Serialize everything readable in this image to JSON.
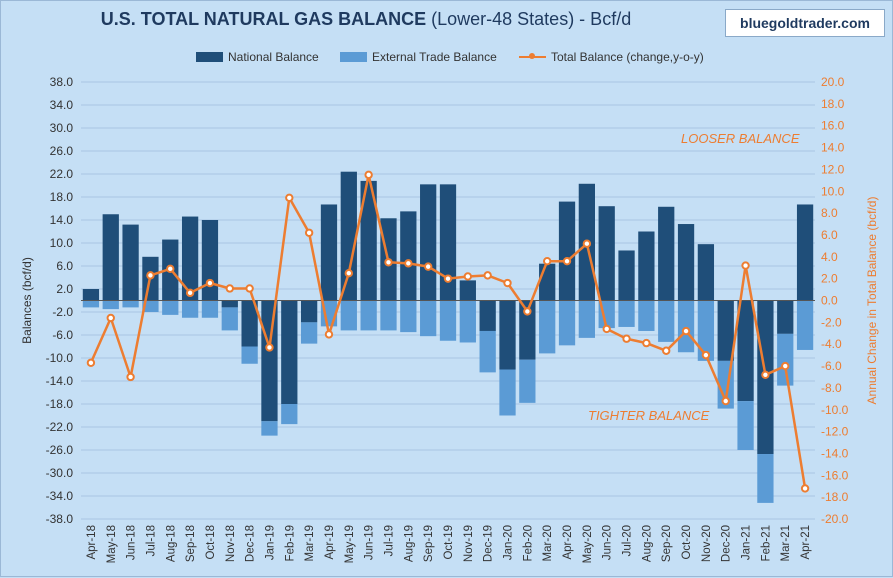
{
  "title": {
    "bold": "U.S. TOTAL NATURAL GAS BALANCE",
    "rest": " (Lower-48 States) - Bcf/d"
  },
  "brand": "bluegoldtrader.com",
  "legend": {
    "national": "National Balance",
    "external": "External Trade Balance",
    "total": "Total Balance (change,y-o-y)"
  },
  "annotations": {
    "looser": "LOOSER BALANCE",
    "tighter": "TIGHTER BALANCE"
  },
  "colors": {
    "national": "#1f4e79",
    "external": "#5b9bd5",
    "total": "#ed7d31",
    "grid": "#a9c6e3"
  },
  "chart_data": {
    "type": "bar",
    "categories": [
      "Apr-18",
      "May-18",
      "Jun-18",
      "Jul-18",
      "Aug-18",
      "Sep-18",
      "Oct-18",
      "Nov-18",
      "Dec-18",
      "Jan-19",
      "Feb-19",
      "Mar-19",
      "Apr-19",
      "May-19",
      "Jun-19",
      "Jul-19",
      "Aug-19",
      "Sep-19",
      "Oct-19",
      "Nov-19",
      "Dec-19",
      "Jan-20",
      "Feb-20",
      "Mar-20",
      "Apr-20",
      "May-20",
      "Jun-20",
      "Jul-20",
      "Aug-20",
      "Sep-20",
      "Oct-20",
      "Nov-20",
      "Dec-20",
      "Jan-21",
      "Feb-21",
      "Mar-21",
      "Apr-21"
    ],
    "series": [
      {
        "name": "National Balance",
        "axis": "left",
        "stack": true,
        "values": [
          2,
          15,
          13.2,
          7.6,
          10.6,
          14.6,
          14,
          -1.2,
          -8,
          -21,
          -18,
          -3.8,
          16.7,
          22.4,
          20.8,
          14.3,
          15.5,
          20.2,
          20.2,
          3.5,
          -5.3,
          -12,
          -10.3,
          6.4,
          17.2,
          20.3,
          16.4,
          8.7,
          12,
          16.3,
          13.3,
          9.8,
          -10.5,
          -17.5,
          -26.7,
          -5.8,
          16.7
        ]
      },
      {
        "name": "External Trade Balance",
        "axis": "left",
        "stack": true,
        "values": [
          -1.2,
          -1.5,
          -1.2,
          -2,
          -2.5,
          -3,
          -3,
          -4,
          -3,
          -2.5,
          -3.5,
          -3.7,
          -4.5,
          -5.2,
          -5.2,
          -5.2,
          -5.5,
          -6.2,
          -7,
          -7.3,
          -7.2,
          -8,
          -7.5,
          -9.2,
          -7.8,
          -6.5,
          -4.8,
          -4.6,
          -5.3,
          -7.2,
          -9,
          -10.5,
          -8.3,
          -8.5,
          -8.5,
          -9,
          -8.6
        ]
      },
      {
        "name": "Total Balance (change,y-o-y)",
        "axis": "right",
        "type": "line",
        "values": [
          -5.7,
          -1.6,
          -7.0,
          2.3,
          2.9,
          0.7,
          1.6,
          1.1,
          1.1,
          -4.3,
          9.4,
          6.2,
          -3.1,
          2.5,
          11.5,
          3.5,
          3.4,
          3.1,
          2.0,
          2.2,
          2.3,
          1.6,
          -1.0,
          3.6,
          3.6,
          5.2,
          -2.6,
          -3.5,
          -3.9,
          -4.6,
          -2.8,
          -5.0,
          -9.2,
          3.2,
          -6.8,
          -6.0,
          -17.2
        ]
      }
    ],
    "ylabel_left": "Balances (bcf/d)",
    "ylabel_right": "Annual Change in Total Balance (bcf/d)",
    "ylim_left": [
      -38,
      38
    ],
    "ylim_right": [
      -20,
      20
    ],
    "yticks_left": [
      "38.0",
      "34.0",
      "30.0",
      "26.0",
      "22.0",
      "18.0",
      "14.0",
      "10.0",
      "6.0",
      "2.0",
      "-2.0",
      "-6.0",
      "-10.0",
      "-14.0",
      "-18.0",
      "-22.0",
      "-26.0",
      "-30.0",
      "-34.0",
      "-38.0"
    ],
    "yticks_right": [
      "20.0",
      "18.0",
      "16.0",
      "14.0",
      "12.0",
      "10.0",
      "8.0",
      "6.0",
      "4.0",
      "2.0",
      "0.0",
      "-2.0",
      "-4.0",
      "-6.0",
      "-8.0",
      "-10.0",
      "-12.0",
      "-14.0",
      "-16.0",
      "-18.0",
      "-20.0"
    ],
    "grid": true,
    "legend_position": "top"
  }
}
